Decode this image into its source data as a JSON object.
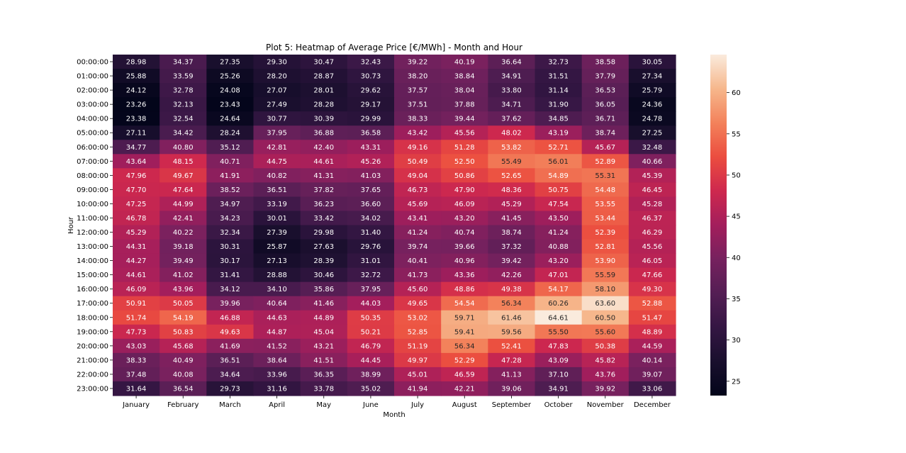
{
  "chart_data": {
    "type": "heatmap",
    "title": "Plot 5: Heatmap of Average Price [€/MWh] - Month and Hour",
    "xlabel": "Month",
    "ylabel": "Hour",
    "x": [
      "January",
      "February",
      "March",
      "April",
      "May",
      "June",
      "July",
      "August",
      "September",
      "October",
      "November",
      "December"
    ],
    "y": [
      "00:00:00",
      "01:00:00",
      "02:00:00",
      "03:00:00",
      "04:00:00",
      "05:00:00",
      "06:00:00",
      "07:00:00",
      "08:00:00",
      "09:00:00",
      "10:00:00",
      "11:00:00",
      "12:00:00",
      "13:00:00",
      "14:00:00",
      "15:00:00",
      "16:00:00",
      "17:00:00",
      "18:00:00",
      "19:00:00",
      "20:00:00",
      "21:00:00",
      "22:00:00",
      "23:00:00"
    ],
    "values": [
      [
        28.98,
        34.37,
        27.35,
        29.3,
        30.47,
        32.43,
        39.22,
        40.19,
        36.64,
        32.73,
        38.58,
        30.05
      ],
      [
        25.88,
        33.59,
        25.26,
        28.2,
        28.87,
        30.73,
        38.2,
        38.84,
        34.91,
        31.51,
        37.79,
        27.34
      ],
      [
        24.12,
        32.78,
        24.08,
        27.07,
        28.01,
        29.62,
        37.57,
        38.04,
        33.8,
        31.14,
        36.53,
        25.79
      ],
      [
        23.26,
        32.13,
        23.43,
        27.49,
        28.28,
        29.17,
        37.51,
        37.88,
        34.71,
        31.9,
        36.05,
        24.36
      ],
      [
        23.38,
        32.54,
        24.64,
        30.77,
        30.39,
        29.99,
        38.33,
        39.44,
        37.62,
        34.85,
        36.71,
        24.78
      ],
      [
        27.11,
        34.42,
        28.24,
        37.95,
        36.88,
        36.58,
        43.42,
        45.56,
        48.02,
        43.19,
        38.74,
        27.25
      ],
      [
        34.77,
        40.8,
        35.12,
        42.81,
        42.4,
        43.31,
        49.16,
        51.28,
        53.82,
        52.71,
        45.67,
        32.48
      ],
      [
        43.64,
        48.15,
        40.71,
        44.75,
        44.61,
        45.26,
        50.49,
        52.5,
        55.49,
        56.01,
        52.89,
        40.66
      ],
      [
        47.96,
        49.67,
        41.91,
        40.82,
        41.31,
        41.03,
        49.04,
        50.86,
        52.65,
        54.89,
        55.31,
        45.39
      ],
      [
        47.7,
        47.64,
        38.52,
        36.51,
        37.82,
        37.65,
        46.73,
        47.9,
        48.36,
        50.75,
        54.48,
        46.45
      ],
      [
        47.25,
        44.99,
        34.97,
        33.19,
        36.23,
        36.6,
        45.69,
        46.09,
        45.29,
        47.54,
        53.55,
        45.28
      ],
      [
        46.78,
        42.41,
        34.23,
        30.01,
        33.42,
        34.02,
        43.41,
        43.2,
        41.45,
        43.5,
        53.44,
        46.37
      ],
      [
        45.29,
        40.22,
        32.34,
        27.39,
        29.98,
        31.4,
        41.24,
        40.74,
        38.74,
        41.24,
        52.39,
        46.29
      ],
      [
        44.31,
        39.18,
        30.31,
        25.87,
        27.63,
        29.76,
        39.74,
        39.66,
        37.32,
        40.88,
        52.81,
        45.56
      ],
      [
        44.27,
        39.49,
        30.17,
        27.13,
        28.39,
        31.01,
        40.41,
        40.96,
        39.42,
        43.2,
        53.9,
        46.05
      ],
      [
        44.61,
        41.02,
        31.41,
        28.88,
        30.46,
        32.72,
        41.73,
        43.36,
        42.26,
        47.01,
        55.59,
        47.66
      ],
      [
        46.09,
        43.96,
        34.12,
        34.1,
        35.86,
        37.95,
        45.6,
        48.86,
        49.38,
        54.17,
        58.1,
        49.3
      ],
      [
        50.91,
        50.05,
        39.96,
        40.64,
        41.46,
        44.03,
        49.65,
        54.54,
        56.34,
        60.26,
        63.6,
        52.88
      ],
      [
        51.74,
        54.19,
        46.88,
        44.63,
        44.89,
        50.35,
        53.02,
        59.71,
        61.46,
        64.61,
        60.5,
        51.47
      ],
      [
        47.73,
        50.83,
        49.63,
        44.87,
        45.04,
        50.21,
        52.85,
        59.41,
        59.56,
        55.5,
        55.6,
        48.89
      ],
      [
        43.03,
        45.68,
        41.69,
        41.52,
        43.21,
        46.79,
        51.19,
        56.34,
        52.41,
        47.83,
        50.38,
        44.59
      ],
      [
        38.33,
        40.49,
        36.51,
        38.64,
        41.51,
        44.45,
        49.97,
        52.29,
        47.28,
        43.09,
        45.82,
        40.14
      ],
      [
        37.48,
        40.08,
        34.64,
        33.96,
        36.35,
        38.99,
        45.01,
        46.59,
        41.13,
        37.1,
        43.76,
        39.07
      ],
      [
        31.64,
        36.54,
        29.73,
        31.16,
        33.78,
        35.02,
        41.94,
        42.21,
        39.06,
        34.91,
        39.92,
        33.06
      ]
    ],
    "colorbar": {
      "ticks": [
        25,
        30,
        35,
        40,
        45,
        50,
        55,
        60
      ],
      "range": [
        23.26,
        64.61
      ],
      "colormap": "rocket"
    },
    "annotation_threshold": 55
  }
}
